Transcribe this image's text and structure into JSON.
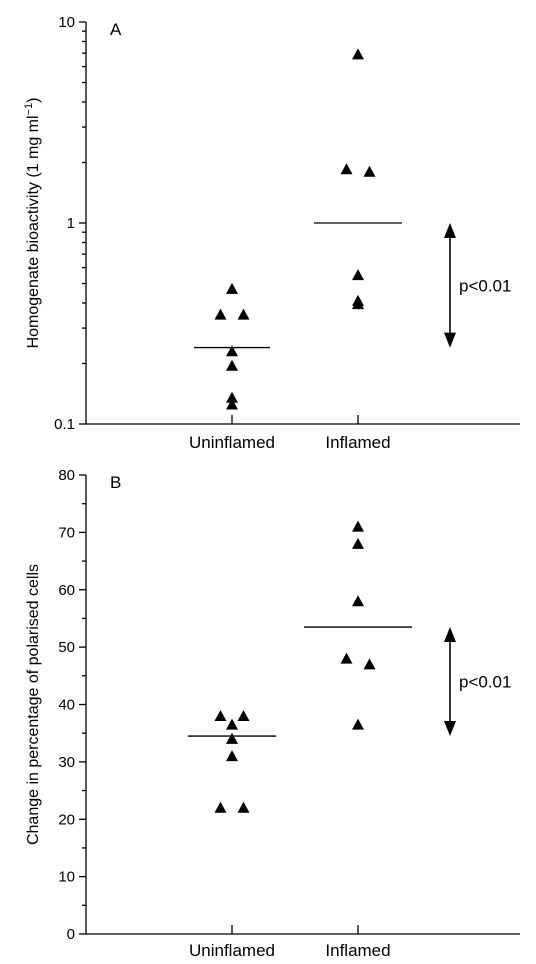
{
  "chart_data": [
    {
      "type": "scatter",
      "panel_label": "A",
      "ylabel_main": "Homogenate bioactivity (1 mg ml",
      "ylabel_sup": "−1",
      "ylabel_end": ")",
      "y_scale": "log",
      "ylim": [
        0.1,
        10
      ],
      "yticks": [
        0.1,
        1,
        10
      ],
      "ytick_labels": [
        "0.1",
        "1",
        "10"
      ],
      "categories": [
        "Uninflamed",
        "Inflamed"
      ],
      "points": [
        [
          0.47,
          0.35,
          0.35,
          0.23,
          0.195,
          0.135,
          0.125
        ],
        [
          6.9,
          1.85,
          1.8,
          0.55,
          0.41,
          0.395
        ]
      ],
      "medians": [
        0.24,
        1.0
      ],
      "significance": "p<0.01"
    },
    {
      "type": "scatter",
      "panel_label": "B",
      "ylabel_main": "Change in percentage of polarised cells",
      "ylabel_sup": "",
      "ylabel_end": "",
      "y_scale": "linear",
      "ylim": [
        0,
        80
      ],
      "yticks": [
        0,
        10,
        20,
        30,
        40,
        50,
        60,
        70,
        80
      ],
      "ytick_labels": [
        "0",
        "10",
        "20",
        "30",
        "40",
        "50",
        "60",
        "70",
        "80"
      ],
      "categories": [
        "Uninflamed",
        "Inflamed"
      ],
      "points": [
        [
          38,
          38,
          36.5,
          34,
          31,
          22,
          22
        ],
        [
          71,
          68,
          58,
          48,
          47,
          36.5
        ]
      ],
      "medians": [
        34.5,
        53.5
      ],
      "significance": "p<0.01"
    }
  ]
}
